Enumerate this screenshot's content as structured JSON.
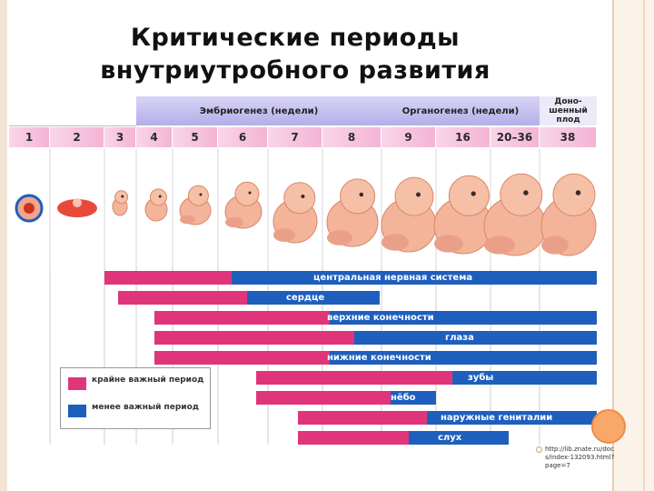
{
  "title_line1": "Критические периоды",
  "title_line2": "внутриутробного развития",
  "header": {
    "embryo": "Эмбриогенез (недели)",
    "organo": "Органогенез (недели)",
    "term_line1": "Доно-",
    "term_line2": "шенный",
    "term_line3": "плод"
  },
  "weeks": [
    "1",
    "2",
    "3",
    "4",
    "5",
    "6",
    "7",
    "8",
    "9",
    "16",
    "20–36",
    "38"
  ],
  "legend": {
    "critical": "крайне важный период",
    "less": "менее важный период"
  },
  "colors": {
    "critical": "#e0357b",
    "less": "#1e5fbe",
    "header": "#b8b4ec",
    "weeks": "#f7c2dc"
  },
  "organs": [
    {
      "label": "центральная нервная система"
    },
    {
      "label": "сердце"
    },
    {
      "label": "верхние конечности"
    },
    {
      "label": "глаза"
    },
    {
      "label": "нижние конечности"
    },
    {
      "label": "зубы"
    },
    {
      "label": "нёбо"
    },
    {
      "label": "наружные гениталии"
    },
    {
      "label": "слух"
    }
  ],
  "caption": "http://lib.znate.ru/docs/index-132093.html?page=7"
}
